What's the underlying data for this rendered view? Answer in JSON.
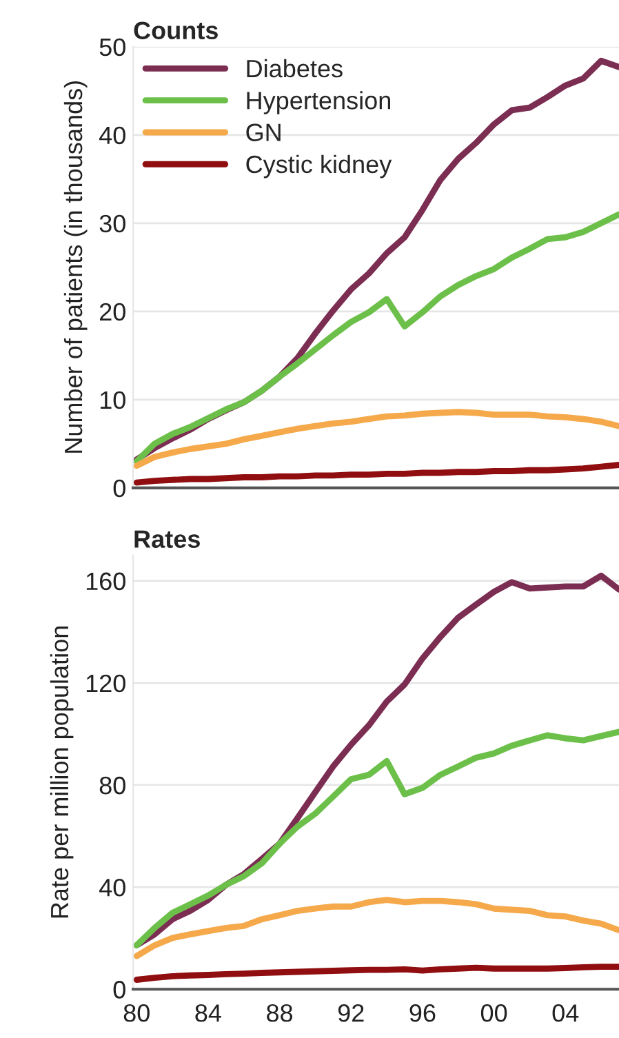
{
  "chart_data": [
    {
      "type": "line",
      "title": "Counts",
      "ylabel": "Number of patients (in thousands)",
      "x": [
        1980,
        1981,
        1982,
        1983,
        1984,
        1985,
        1986,
        1987,
        1988,
        1989,
        1990,
        1991,
        1992,
        1993,
        1994,
        1995,
        1996,
        1997,
        1998,
        1999,
        2000,
        2001,
        2002,
        2003,
        2004,
        2005,
        2006,
        2007
      ],
      "series": [
        {
          "name": "Diabetes",
          "color": "#7b2d52",
          "values": [
            3.2,
            4.5,
            5.6,
            6.6,
            7.8,
            8.8,
            9.7,
            11,
            12.6,
            14.7,
            17.5,
            20.1,
            22.5,
            24.3,
            26.6,
            28.4,
            31.5,
            34.9,
            37.3,
            39.1,
            41.2,
            42.8,
            43.1,
            44.3,
            45.6,
            46.4,
            48.4,
            47.7
          ]
        },
        {
          "name": "Hypertension",
          "color": "#6cc04a",
          "values": [
            3.0,
            5.0,
            6.1,
            6.9,
            7.9,
            8.9,
            9.7,
            11,
            12.6,
            14.1,
            15.7,
            17.3,
            18.8,
            19.9,
            21.4,
            18.3,
            19.9,
            21.7,
            23,
            24,
            24.8,
            26.1,
            27.1,
            28.2,
            28.4,
            29,
            30,
            31
          ]
        },
        {
          "name": "GN",
          "color": "#f5a94a",
          "values": [
            2.5,
            3.5,
            4.0,
            4.4,
            4.7,
            5.0,
            5.5,
            5.9,
            6.3,
            6.7,
            7.0,
            7.3,
            7.5,
            7.8,
            8.1,
            8.2,
            8.4,
            8.5,
            8.6,
            8.5,
            8.3,
            8.3,
            8.3,
            8.1,
            8.0,
            7.8,
            7.5,
            7.0
          ]
        },
        {
          "name": "Cystic kidney",
          "color": "#900e10",
          "values": [
            0.6,
            0.8,
            0.9,
            1.0,
            1.0,
            1.1,
            1.2,
            1.2,
            1.3,
            1.3,
            1.4,
            1.4,
            1.5,
            1.5,
            1.6,
            1.6,
            1.7,
            1.7,
            1.8,
            1.8,
            1.9,
            1.9,
            2.0,
            2.0,
            2.1,
            2.2,
            2.4,
            2.6
          ]
        }
      ],
      "xlim": [
        1979.8,
        2007
      ],
      "ylim": [
        0,
        50
      ],
      "yticks": [
        0,
        10,
        20,
        30,
        40,
        50
      ],
      "grid": "y",
      "legend": "top left",
      "tick_labels": "y",
      "line_style": "solid",
      "marker": "none"
    },
    {
      "type": "line",
      "title": "Rates",
      "ylabel": "Rate per million population",
      "x": [
        1980,
        1981,
        1982,
        1983,
        1984,
        1985,
        1986,
        1987,
        1988,
        1989,
        1990,
        1991,
        1992,
        1993,
        1994,
        1995,
        1996,
        1997,
        1998,
        1999,
        2000,
        2001,
        2002,
        2003,
        2004,
        2005,
        2006,
        2007
      ],
      "series": [
        {
          "color": "#7b2d52",
          "values": [
            17.2,
            21.5,
            27.4,
            30.7,
            35,
            40.9,
            45.1,
            51,
            57,
            67,
            77.2,
            87.3,
            95.8,
            103.4,
            112.7,
            119.4,
            129.6,
            138,
            145.6,
            150.7,
            155.7,
            159.5,
            157,
            157.4,
            157.8,
            157.8,
            162,
            156.6
          ]
        },
        {
          "color": "#6cc04a",
          "values": [
            17.2,
            24,
            29.9,
            33.3,
            36.7,
            40.9,
            44.3,
            49.3,
            57,
            63.7,
            68.8,
            75.5,
            82.3,
            84,
            89.4,
            76.4,
            78.9,
            84,
            87.3,
            90.7,
            92.4,
            95.4,
            97.5,
            99.5,
            98.3,
            97.5,
            99.2,
            100.8
          ]
        },
        {
          "color": "#f5a94a",
          "values": [
            13,
            17.2,
            20.1,
            21.5,
            22.8,
            24,
            24.8,
            27.4,
            29,
            30.7,
            31.6,
            32.4,
            32.4,
            34.1,
            35,
            34.1,
            34.6,
            34.6,
            34.1,
            33.3,
            31.6,
            31.1,
            30.7,
            29,
            28.5,
            26.9,
            25.7,
            23.1
          ]
        },
        {
          "color": "#900e10",
          "values": [
            3.7,
            4.5,
            5.1,
            5.4,
            5.6,
            5.9,
            6.1,
            6.4,
            6.6,
            6.8,
            7,
            7.2,
            7.4,
            7.6,
            7.6,
            7.8,
            7.3,
            7.8,
            8.1,
            8.4,
            8.1,
            8.1,
            8.1,
            8.1,
            8.3,
            8.6,
            8.8,
            8.8
          ]
        }
      ],
      "xlim": [
        1979.8,
        2007
      ],
      "xticks": [
        {
          "value": 1980,
          "label": "80"
        },
        {
          "value": 1984,
          "label": "84"
        },
        {
          "value": 1988,
          "label": "88"
        },
        {
          "value": 1992,
          "label": "92"
        },
        {
          "value": 1996,
          "label": "96"
        },
        {
          "value": 2000,
          "label": "00"
        },
        {
          "value": 2004,
          "label": "04"
        }
      ],
      "ylim": [
        0,
        170
      ],
      "yticks": [
        0,
        40,
        80,
        120,
        160
      ],
      "grid": "y",
      "line_style": "solid",
      "marker": "none"
    }
  ]
}
